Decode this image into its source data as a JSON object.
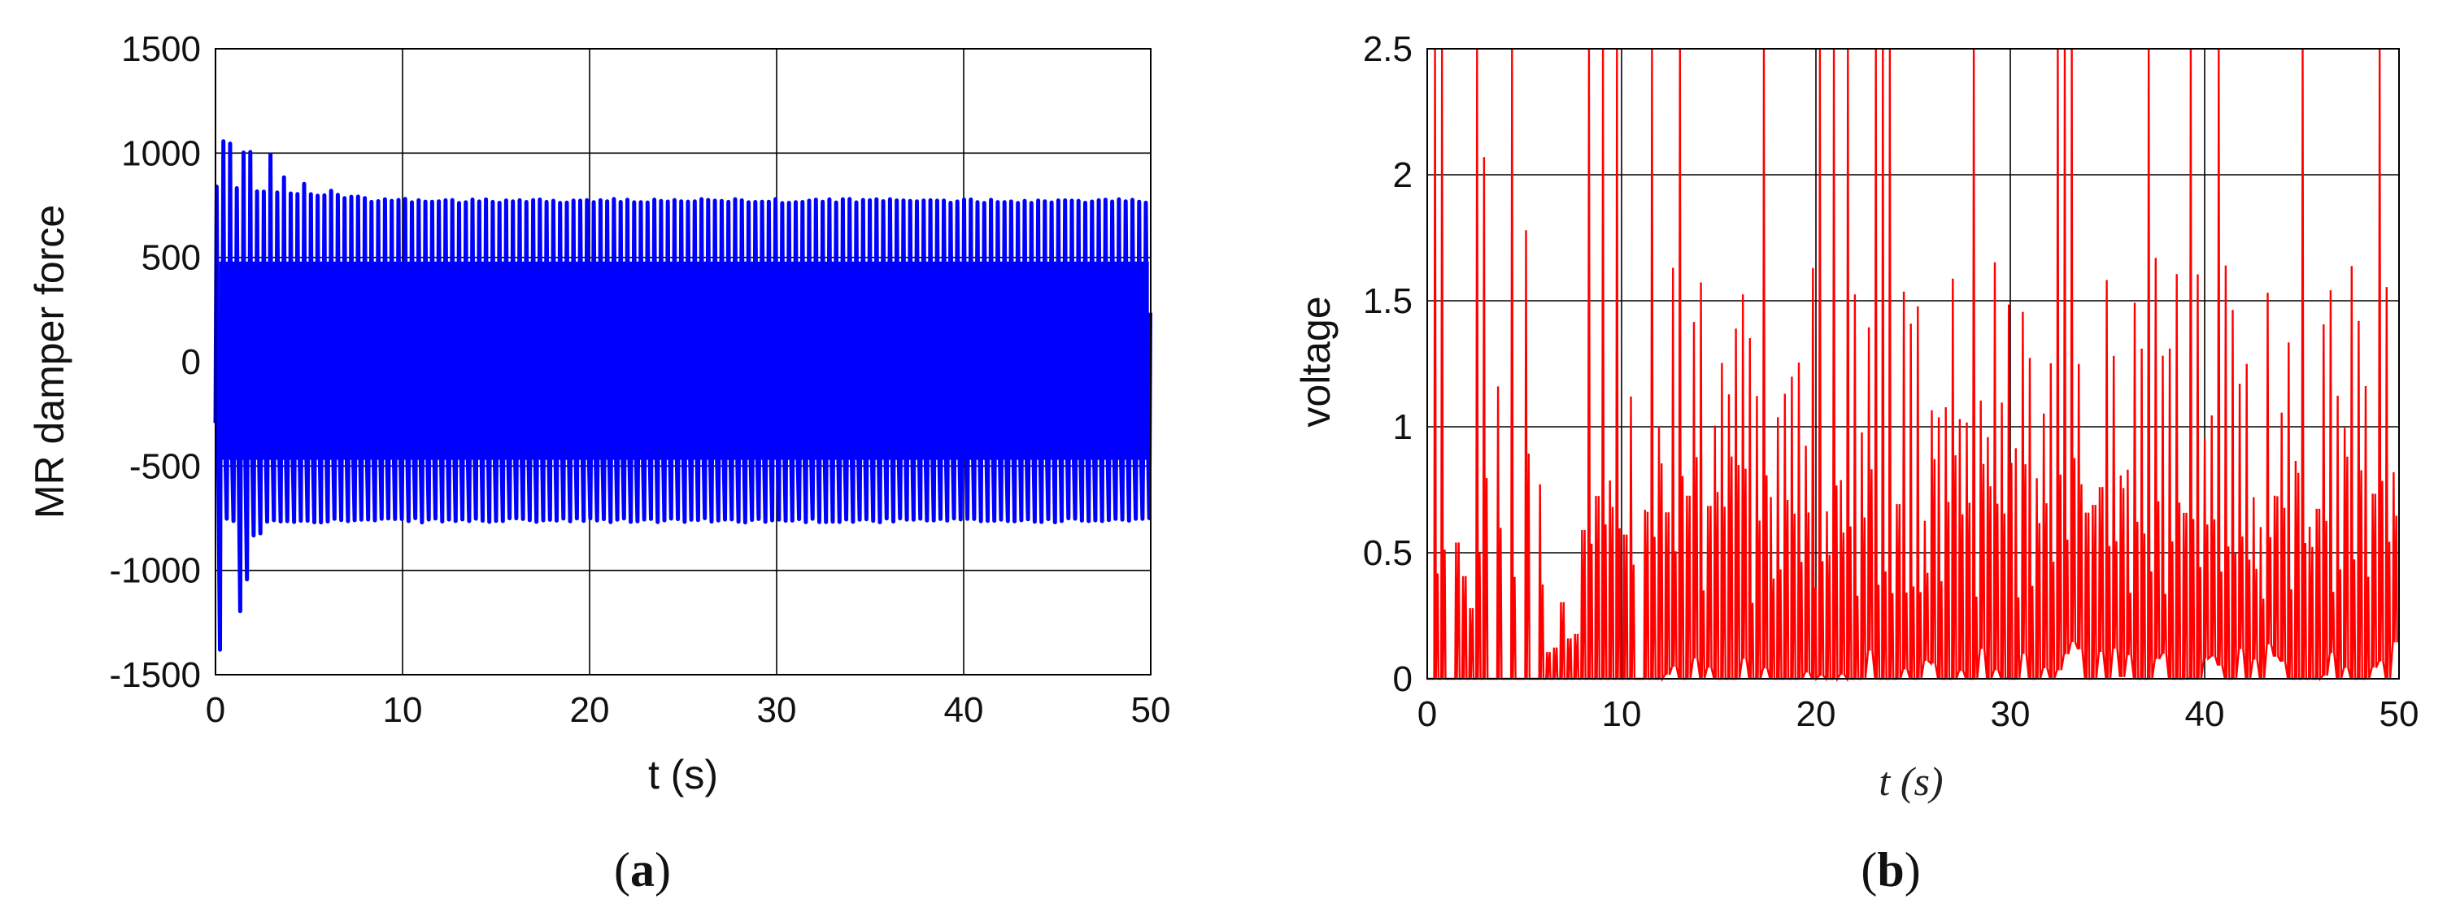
{
  "chart_data": [
    {
      "type": "line",
      "panel_label": "a",
      "xlabel": "t (s)",
      "ylabel": "MR damper force",
      "xlim": [
        0,
        50
      ],
      "ylim": [
        -1500,
        1500
      ],
      "xticks": [
        "0",
        "10",
        "20",
        "30",
        "40",
        "50"
      ],
      "yticks": [
        "1500",
        "1000",
        "500",
        "0",
        "-500",
        "-1000",
        "-1500"
      ],
      "grid": true,
      "color": "#0000ff",
      "signal": {
        "description_values": "dense oscillation; initial transient peaks then steady envelope",
        "oscillation_period_s": 0.36,
        "steady_upper": 780,
        "steady_lower": -770,
        "transient_peaks": [
          {
            "t": 0.1,
            "value": -1400
          },
          {
            "t": 0.4,
            "value": 1060
          },
          {
            "t": 0.8,
            "value": 1060
          },
          {
            "t": 1.0,
            "value": -1200
          },
          {
            "t": 1.3,
            "value": -1060
          },
          {
            "t": 1.6,
            "value": 1020
          },
          {
            "t": 2.0,
            "value": -840
          },
          {
            "t": 2.8,
            "value": 1000
          },
          {
            "t": 3.5,
            "value": 900
          },
          {
            "t": 4.6,
            "value": 860
          },
          {
            "t": 6.0,
            "value": 830
          },
          {
            "t": 8.0,
            "value": 800
          }
        ]
      }
    },
    {
      "type": "line",
      "panel_label": "b",
      "xlabel": "t (s)",
      "ylabel": "voltage",
      "xlim": [
        0,
        50
      ],
      "ylim": [
        0,
        2.5
      ],
      "xticks": [
        "0",
        "10",
        "20",
        "30",
        "40",
        "50"
      ],
      "yticks": [
        "2.5",
        "2",
        "1.5",
        "1",
        "0.5",
        "0"
      ],
      "grid": true,
      "color": "#ff0000",
      "signal": {
        "description_values": "spiky on/off voltage; sparse until ~11 s, dense afterwards",
        "spike_period_s": 0.36,
        "notable_spikes": [
          {
            "t": 0.4,
            "value": 2.5
          },
          {
            "t": 0.8,
            "value": 2.5
          },
          {
            "t": 2.5,
            "value": 2.5
          },
          {
            "t": 3.0,
            "value": 2.07
          },
          {
            "t": 3.6,
            "value": 1.16
          },
          {
            "t": 4.3,
            "value": 2.5
          },
          {
            "t": 5.0,
            "value": 1.78
          },
          {
            "t": 8.4,
            "value": 2.5
          },
          {
            "t": 9.0,
            "value": 2.5
          },
          {
            "t": 9.6,
            "value": 2.5
          },
          {
            "t": 10.5,
            "value": 1.12
          },
          {
            "t": 13.0,
            "value": 2.5
          },
          {
            "t": 21.0,
            "value": 2.5
          },
          {
            "t": 28.0,
            "value": 2.5
          },
          {
            "t": 33.0,
            "value": 2.5
          },
          {
            "t": 45.0,
            "value": 2.5
          },
          {
            "t": 49.0,
            "value": 2.5
          }
        ]
      }
    }
  ]
}
